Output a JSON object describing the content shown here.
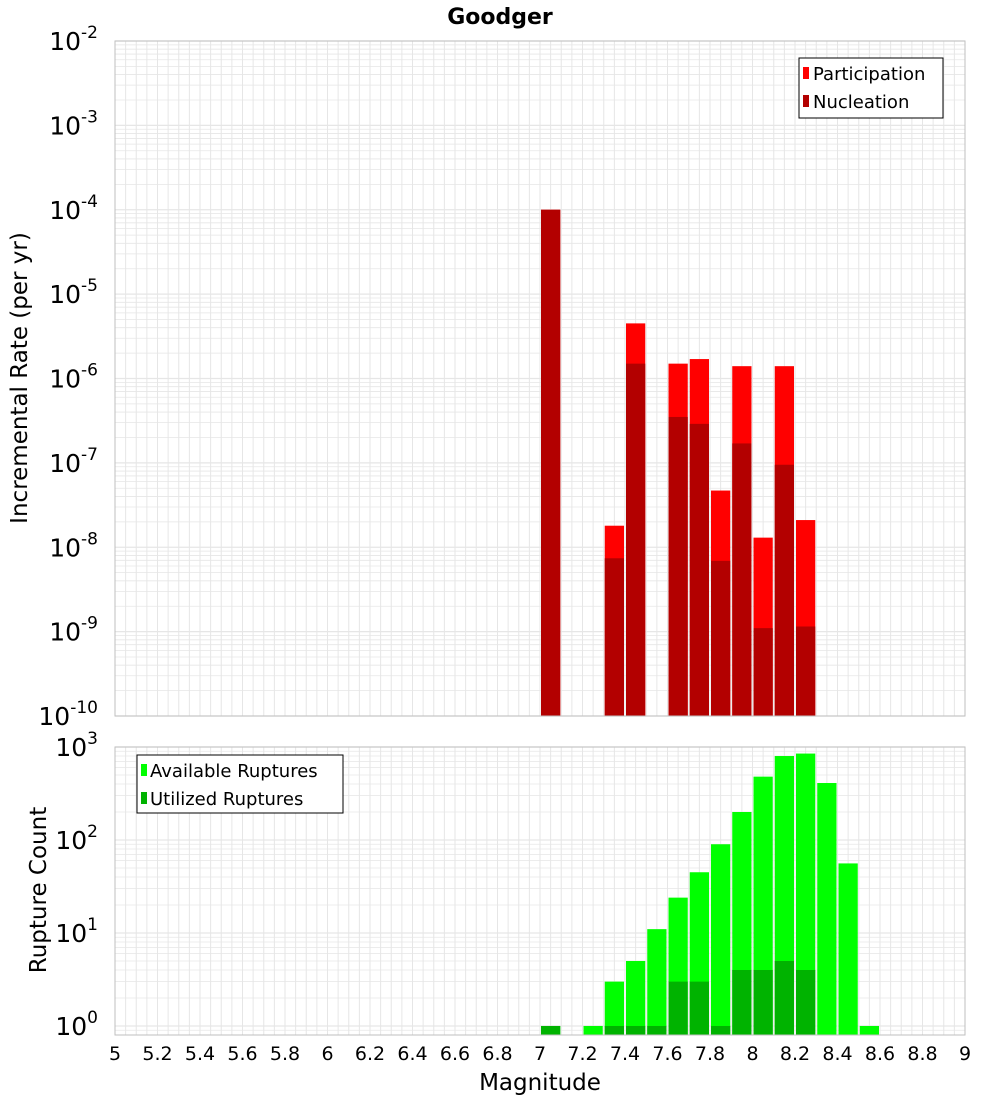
{
  "colors": {
    "participation": "#ff0000",
    "nucleation": "#b30000",
    "available": "#00ff00",
    "utilized": "#00b300",
    "grid": "#e6e6e6",
    "frame": "#bfbfbf"
  },
  "chart_data": [
    {
      "type": "bar",
      "title": "Goodger",
      "xlabel": "",
      "ylabel": "Incremental Rate (per yr)",
      "yscale": "log",
      "ylim": [
        1e-10,
        0.01
      ],
      "xlim": [
        5,
        9
      ],
      "grid": true,
      "legend_position": "top-right",
      "bar_width": 0.1,
      "series": [
        {
          "name": "Participation",
          "x": [
            7.05,
            7.35,
            7.45,
            7.65,
            7.75,
            7.85,
            7.95,
            8.05,
            8.15,
            8.25
          ],
          "values": [
            0.0001,
            1.8e-08,
            4.5e-06,
            1.5e-06,
            1.7e-06,
            4.7e-08,
            1.4e-06,
            1.3e-08,
            1.4e-06,
            2.1e-08
          ]
        },
        {
          "name": "Nucleation",
          "x": [
            7.05,
            7.35,
            7.45,
            7.65,
            7.75,
            7.85,
            7.95,
            8.05,
            8.15,
            8.25
          ],
          "values": [
            0.0001,
            7.4e-09,
            1.5e-06,
            3.5e-07,
            2.9e-07,
            6.9e-09,
            1.7e-07,
            1.1e-09,
            9.5e-08,
            1.15e-09
          ]
        }
      ]
    },
    {
      "type": "bar",
      "title": "",
      "xlabel": "Magnitude",
      "ylabel": "Rupture Count",
      "yscale": "log",
      "ylim": [
        0.8,
        1000
      ],
      "xlim": [
        5,
        9
      ],
      "xticks": [
        "5",
        "5.2",
        "5.4",
        "5.6",
        "5.8",
        "6",
        "6.2",
        "6.4",
        "6.6",
        "6.8",
        "7",
        "7.2",
        "7.4",
        "7.6",
        "7.8",
        "8",
        "8.2",
        "8.4",
        "8.6",
        "8.8",
        "9"
      ],
      "grid": true,
      "legend_position": "top-left",
      "bar_width": 0.1,
      "series": [
        {
          "name": "Available Ruptures",
          "x": [
            7.05,
            7.25,
            7.35,
            7.45,
            7.55,
            7.65,
            7.75,
            7.85,
            7.95,
            8.05,
            8.15,
            8.25,
            8.35,
            8.45,
            8.55
          ],
          "values": [
            1,
            1,
            3,
            5,
            11,
            24,
            45,
            90,
            200,
            480,
            800,
            850,
            410,
            56,
            1
          ]
        },
        {
          "name": "Utilized Ruptures",
          "x": [
            7.05,
            7.35,
            7.45,
            7.55,
            7.65,
            7.75,
            7.85,
            7.95,
            8.05,
            8.15,
            8.25
          ],
          "values": [
            1,
            1,
            1,
            1,
            3,
            3,
            1,
            4,
            4,
            5,
            4
          ]
        }
      ]
    }
  ]
}
